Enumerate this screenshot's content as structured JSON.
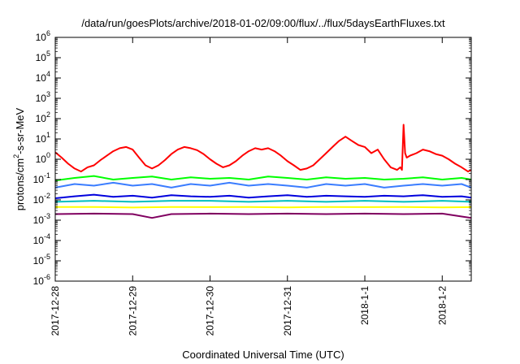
{
  "chart_data": {
    "type": "line",
    "title": "/data/run/goesPlots/archive/2018-01-02/09:00/flux/../flux/5daysEarthFluxes.txt",
    "xlabel": "Coordinated Universal Time (UTC)",
    "ylabel": "protons/cm2-s-sr-MeV",
    "ylabel_parts": [
      "protons/cm",
      "2",
      "-s-sr-MeV"
    ],
    "x_scale": "time",
    "xlim": [
      "2017-12-28T00:00",
      "2018-01-02T09:00"
    ],
    "y_scale": "log",
    "ylim": [
      1e-06,
      1000000.0
    ],
    "y_ticks": [
      {
        "value": 1e-06,
        "base": "10",
        "exp": "-6"
      },
      {
        "value": 1e-05,
        "base": "10",
        "exp": "-5"
      },
      {
        "value": 0.0001,
        "base": "10",
        "exp": "-4"
      },
      {
        "value": 0.001,
        "base": "10",
        "exp": "-3"
      },
      {
        "value": 0.01,
        "base": "10",
        "exp": "-2"
      },
      {
        "value": 0.1,
        "base": "10",
        "exp": "-1"
      },
      {
        "value": 1.0,
        "base": "10",
        "exp": "0"
      },
      {
        "value": 10.0,
        "base": "10",
        "exp": "1"
      },
      {
        "value": 100.0,
        "base": "10",
        "exp": "2"
      },
      {
        "value": 1000.0,
        "base": "10",
        "exp": "3"
      },
      {
        "value": 10000.0,
        "base": "10",
        "exp": "4"
      },
      {
        "value": 100000.0,
        "base": "10",
        "exp": "5"
      },
      {
        "value": 1000000.0,
        "base": "10",
        "exp": "6"
      }
    ],
    "x_ticks": [
      {
        "value": "2017-12-28T00:00",
        "label": "2017-12-28"
      },
      {
        "value": "2017-12-29T00:00",
        "label": "2017-12-29"
      },
      {
        "value": "2017-12-30T00:00",
        "label": "2017-12-30"
      },
      {
        "value": "2017-12-31T00:00",
        "label": "2017-12-31"
      },
      {
        "value": "2018-01-01T00:00",
        "label": "2018-1-1"
      },
      {
        "value": "2018-01-02T00:00",
        "label": "2018-1-2"
      }
    ],
    "grid": false,
    "legend": "none",
    "series": [
      {
        "color": "#ff0000",
        "x": [
          "2017-12-28T00:00",
          "2017-12-28T02:00",
          "2017-12-28T04:00",
          "2017-12-28T06:00",
          "2017-12-28T08:00",
          "2017-12-28T10:00",
          "2017-12-28T12:00",
          "2017-12-28T14:00",
          "2017-12-28T16:00",
          "2017-12-28T18:00",
          "2017-12-28T20:00",
          "2017-12-28T22:00",
          "2017-12-29T00:00",
          "2017-12-29T02:00",
          "2017-12-29T04:00",
          "2017-12-29T06:00",
          "2017-12-29T08:00",
          "2017-12-29T10:00",
          "2017-12-29T12:00",
          "2017-12-29T14:00",
          "2017-12-29T16:00",
          "2017-12-29T18:00",
          "2017-12-29T20:00",
          "2017-12-29T22:00",
          "2017-12-30T00:00",
          "2017-12-30T02:00",
          "2017-12-30T04:00",
          "2017-12-30T06:00",
          "2017-12-30T08:00",
          "2017-12-30T10:00",
          "2017-12-30T12:00",
          "2017-12-30T14:00",
          "2017-12-30T16:00",
          "2017-12-30T18:00",
          "2017-12-30T20:00",
          "2017-12-30T22:00",
          "2017-12-31T00:00",
          "2017-12-31T02:00",
          "2017-12-31T04:00",
          "2017-12-31T06:00",
          "2017-12-31T08:00",
          "2017-12-31T10:00",
          "2017-12-31T12:00",
          "2017-12-31T14:00",
          "2017-12-31T16:00",
          "2017-12-31T18:00",
          "2017-12-31T20:00",
          "2017-12-31T22:00",
          "2018-01-01T00:00",
          "2018-01-01T02:00",
          "2018-01-01T04:00",
          "2018-01-01T06:00",
          "2018-01-01T08:00",
          "2018-01-01T10:00",
          "2018-01-01T11:00",
          "2018-01-01T11:30",
          "2018-01-01T12:00",
          "2018-01-01T12:30",
          "2018-01-01T13:00",
          "2018-01-01T14:00",
          "2018-01-01T16:00",
          "2018-01-01T18:00",
          "2018-01-01T20:00",
          "2018-01-01T22:00",
          "2018-01-02T00:00",
          "2018-01-02T02:00",
          "2018-01-02T04:00",
          "2018-01-02T06:00",
          "2018-01-02T08:00",
          "2018-01-02T09:00"
        ],
        "values": [
          2.2,
          1.2,
          0.6,
          0.35,
          0.25,
          0.4,
          0.5,
          0.9,
          1.5,
          2.5,
          3.5,
          4.0,
          3.0,
          1.2,
          0.5,
          0.35,
          0.5,
          0.9,
          1.8,
          3.0,
          4.0,
          3.5,
          2.8,
          1.8,
          1.0,
          0.6,
          0.4,
          0.5,
          0.8,
          1.5,
          2.5,
          3.5,
          3.0,
          3.5,
          2.5,
          1.5,
          0.8,
          0.5,
          0.3,
          0.35,
          0.5,
          1.0,
          2.0,
          4.0,
          8.0,
          13.0,
          8.0,
          5.0,
          4.0,
          2.0,
          3.0,
          1.0,
          0.4,
          0.3,
          0.4,
          0.3,
          50.0,
          2.0,
          1.2,
          1.5,
          2.0,
          3.0,
          2.5,
          1.8,
          1.5,
          1.0,
          0.6,
          0.4,
          0.25,
          0.3
        ]
      },
      {
        "color": "#00ff00",
        "x": [
          "2017-12-28T00:00",
          "2017-12-28T06:00",
          "2017-12-28T12:00",
          "2017-12-28T18:00",
          "2017-12-29T00:00",
          "2017-12-29T06:00",
          "2017-12-29T12:00",
          "2017-12-29T18:00",
          "2017-12-30T00:00",
          "2017-12-30T06:00",
          "2017-12-30T12:00",
          "2017-12-30T18:00",
          "2017-12-31T00:00",
          "2017-12-31T06:00",
          "2017-12-31T12:00",
          "2017-12-31T18:00",
          "2018-01-01T00:00",
          "2018-01-01T06:00",
          "2018-01-01T12:00",
          "2018-01-01T18:00",
          "2018-01-02T00:00",
          "2018-01-02T06:00",
          "2018-01-02T09:00"
        ],
        "values": [
          0.09,
          0.12,
          0.15,
          0.1,
          0.12,
          0.14,
          0.1,
          0.13,
          0.11,
          0.12,
          0.1,
          0.14,
          0.12,
          0.1,
          0.13,
          0.11,
          0.12,
          0.1,
          0.11,
          0.13,
          0.1,
          0.12,
          0.1
        ]
      },
      {
        "color": "#00bfbf",
        "x": [
          "2017-12-28T00:00",
          "2017-12-28T12:00",
          "2017-12-29T00:00",
          "2017-12-29T12:00",
          "2017-12-30T00:00",
          "2017-12-30T12:00",
          "2017-12-31T00:00",
          "2017-12-31T12:00",
          "2018-01-01T00:00",
          "2018-01-01T12:00",
          "2018-01-02T00:00",
          "2018-01-02T09:00"
        ],
        "values": [
          0.008,
          0.009,
          0.008,
          0.009,
          0.009,
          0.008,
          0.009,
          0.008,
          0.009,
          0.008,
          0.009,
          0.008
        ]
      },
      {
        "color": "#3b7dff",
        "x": [
          "2017-12-28T00:00",
          "2017-12-28T06:00",
          "2017-12-28T12:00",
          "2017-12-28T18:00",
          "2017-12-29T00:00",
          "2017-12-29T06:00",
          "2017-12-29T12:00",
          "2017-12-29T18:00",
          "2017-12-30T00:00",
          "2017-12-30T06:00",
          "2017-12-30T12:00",
          "2017-12-30T18:00",
          "2017-12-31T00:00",
          "2017-12-31T06:00",
          "2017-12-31T12:00",
          "2017-12-31T18:00",
          "2018-01-01T00:00",
          "2018-01-01T06:00",
          "2018-01-01T12:00",
          "2018-01-01T18:00",
          "2018-01-02T00:00",
          "2018-01-02T06:00",
          "2018-01-02T09:00"
        ],
        "values": [
          0.04,
          0.06,
          0.05,
          0.07,
          0.05,
          0.06,
          0.04,
          0.06,
          0.05,
          0.07,
          0.05,
          0.06,
          0.05,
          0.04,
          0.06,
          0.05,
          0.06,
          0.04,
          0.05,
          0.06,
          0.05,
          0.06,
          0.04
        ]
      },
      {
        "color": "#0000dd",
        "x": [
          "2017-12-28T00:00",
          "2017-12-28T06:00",
          "2017-12-28T12:00",
          "2017-12-28T18:00",
          "2017-12-29T00:00",
          "2017-12-29T06:00",
          "2017-12-29T12:00",
          "2017-12-29T18:00",
          "2017-12-30T00:00",
          "2017-12-30T06:00",
          "2017-12-30T12:00",
          "2017-12-30T18:00",
          "2017-12-31T00:00",
          "2017-12-31T06:00",
          "2017-12-31T12:00",
          "2017-12-31T18:00",
          "2018-01-01T00:00",
          "2018-01-01T06:00",
          "2018-01-01T12:00",
          "2018-01-01T18:00",
          "2018-01-02T00:00",
          "2018-01-02T06:00",
          "2018-01-02T09:00"
        ],
        "values": [
          0.012,
          0.015,
          0.018,
          0.014,
          0.016,
          0.013,
          0.017,
          0.015,
          0.014,
          0.016,
          0.013,
          0.015,
          0.017,
          0.014,
          0.016,
          0.015,
          0.014,
          0.016,
          0.015,
          0.017,
          0.014,
          0.015,
          0.013
        ]
      },
      {
        "color": "#ffff00",
        "x": [
          "2017-12-28T00:00",
          "2017-12-28T12:00",
          "2017-12-29T00:00",
          "2017-12-29T12:00",
          "2017-12-30T00:00",
          "2017-12-30T12:00",
          "2017-12-31T00:00",
          "2017-12-31T12:00",
          "2018-01-01T00:00",
          "2018-01-01T12:00",
          "2018-01-02T00:00",
          "2018-01-02T09:00"
        ],
        "values": [
          0.0045,
          0.0045,
          0.0042,
          0.0045,
          0.0044,
          0.0045,
          0.0043,
          0.0045,
          0.0044,
          0.0045,
          0.0043,
          0.0044
        ]
      },
      {
        "color": "#800060",
        "x": [
          "2017-12-28T00:00",
          "2017-12-28T12:00",
          "2017-12-29T00:00",
          "2017-12-29T06:00",
          "2017-12-29T12:00",
          "2017-12-30T00:00",
          "2017-12-30T12:00",
          "2017-12-31T00:00",
          "2017-12-31T12:00",
          "2018-01-01T00:00",
          "2018-01-01T12:00",
          "2018-01-02T00:00",
          "2018-01-02T09:00"
        ],
        "values": [
          0.002,
          0.0021,
          0.002,
          0.0013,
          0.002,
          0.0021,
          0.002,
          0.0021,
          0.002,
          0.0021,
          0.002,
          0.0021,
          0.0013
        ]
      }
    ]
  }
}
